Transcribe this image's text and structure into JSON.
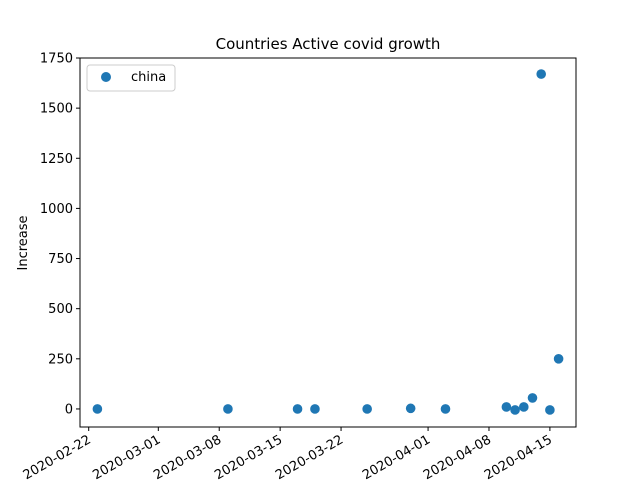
{
  "chart_data": {
    "type": "scatter",
    "title": "Countries Active covid growth",
    "xlabel": "",
    "ylabel": "Increase",
    "x_tick_labels": [
      "2020-02-22",
      "2020-03-01",
      "2020-03-08",
      "2020-03-15",
      "2020-03-22",
      "2020-04-01",
      "2020-04-08",
      "2020-04-15"
    ],
    "y_tick_labels": [
      "0",
      "250",
      "500",
      "750",
      "1000",
      "1250",
      "1500",
      "1750"
    ],
    "ylim": [
      -90,
      1750
    ],
    "xlim": [
      "2020-02-21",
      "2020-04-18"
    ],
    "grid": false,
    "legend_position": "top-left",
    "colors": {
      "series": "#1f77b4"
    },
    "series": [
      {
        "name": "china",
        "points": [
          {
            "x": "2020-02-23",
            "y": 0
          },
          {
            "x": "2020-03-09",
            "y": 0
          },
          {
            "x": "2020-03-17",
            "y": 0
          },
          {
            "x": "2020-03-19",
            "y": 0
          },
          {
            "x": "2020-03-25",
            "y": 0
          },
          {
            "x": "2020-03-30",
            "y": 3
          },
          {
            "x": "2020-04-03",
            "y": 0
          },
          {
            "x": "2020-04-10",
            "y": 10
          },
          {
            "x": "2020-04-11",
            "y": -5
          },
          {
            "x": "2020-04-12",
            "y": 10
          },
          {
            "x": "2020-04-13",
            "y": 55
          },
          {
            "x": "2020-04-14",
            "y": 1670
          },
          {
            "x": "2020-04-15",
            "y": -5
          },
          {
            "x": "2020-04-16",
            "y": 250
          }
        ]
      }
    ]
  }
}
